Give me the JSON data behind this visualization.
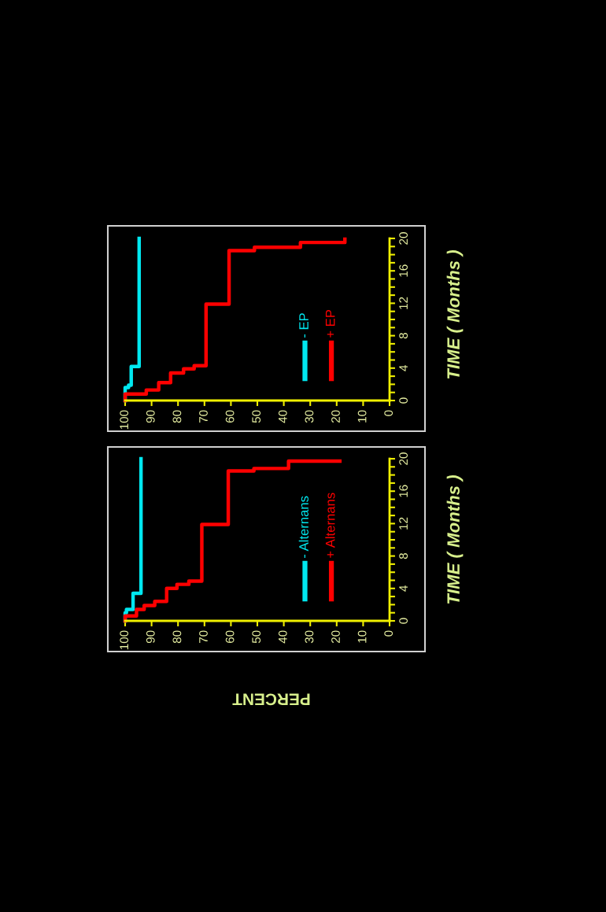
{
  "chart_data": [
    {
      "type": "step",
      "xlabel": "PERCENT",
      "ylabel": "TIME ( Months )",
      "xlim": [
        100,
        0
      ],
      "ylim": [
        0,
        20
      ],
      "xticks": [
        100,
        90,
        80,
        70,
        60,
        50,
        40,
        30,
        20,
        10,
        0
      ],
      "yticks": [
        0,
        {
          "value": 1,
          "label": null
        },
        {
          "value": 2,
          "label": null
        },
        {
          "value": 3,
          "label": null
        },
        4,
        {
          "value": 5,
          "label": null
        },
        {
          "value": 6,
          "label": null
        },
        {
          "value": 7,
          "label": null
        },
        8,
        {
          "value": 9,
          "label": null
        },
        {
          "value": 10,
          "label": null
        },
        {
          "value": 11,
          "label": null
        },
        12,
        {
          "value": 13,
          "label": null
        },
        {
          "value": 14,
          "label": null
        },
        {
          "value": 15,
          "label": null
        },
        16,
        {
          "value": 17,
          "label": null
        },
        {
          "value": 18,
          "label": null
        },
        {
          "value": 19,
          "label": null
        },
        20
      ],
      "legend": "right",
      "grid": false,
      "series": [
        {
          "name": "- Alternans",
          "color": "#00e8f0",
          "x": [
            100,
            99.5,
            97,
            94,
            94
          ],
          "values": [
            0,
            1.0,
            1.4,
            3.4,
            20
          ]
        },
        {
          "name": "+ Alternans",
          "color": "#ff0000",
          "x": [
            100,
            95.7,
            92.8,
            88.8,
            84.3,
            80.4,
            75.9,
            71,
            61,
            51.3,
            38.2,
            18.8
          ],
          "values": [
            0,
            0.6,
            1.4,
            1.9,
            2.4,
            4.0,
            4.5,
            4.9,
            11.9,
            18.5,
            18.8,
            19.7
          ]
        }
      ]
    },
    {
      "type": "step",
      "ylabel": "TIME ( Months )",
      "xlim": [
        100,
        0
      ],
      "ylim": [
        0,
        20
      ],
      "xticks": [
        100,
        90,
        80,
        70,
        60,
        50,
        40,
        30,
        20,
        10,
        0
      ],
      "yticks": [
        0,
        {
          "value": 1,
          "label": null
        },
        {
          "value": 2,
          "label": null
        },
        {
          "value": 3,
          "label": null
        },
        4,
        {
          "value": 5,
          "label": null
        },
        {
          "value": 6,
          "label": null
        },
        {
          "value": 7,
          "label": null
        },
        8,
        {
          "value": 9,
          "label": null
        },
        {
          "value": 10,
          "label": null
        },
        {
          "value": 11,
          "label": null
        },
        12,
        {
          "value": 13,
          "label": null
        },
        {
          "value": 14,
          "label": null
        },
        {
          "value": 15,
          "label": null
        },
        16,
        {
          "value": 17,
          "label": null
        },
        {
          "value": 18,
          "label": null
        },
        {
          "value": 19,
          "label": null
        },
        20
      ],
      "legend": "right",
      "grid": false,
      "series": [
        {
          "name": "- EP",
          "color": "#00e8f0",
          "x": [
            100,
            98.7,
            97.7,
            94.7,
            94.7
          ],
          "values": [
            0,
            1.6,
            1.9,
            4.2,
            20
          ]
        },
        {
          "name": "+ EP",
          "color": "#ff0000",
          "x": [
            100,
            92,
            87.3,
            82.8,
            77.9,
            73.9,
            69.4,
            60.7,
            51.1,
            33.7,
            16.9,
            16.9
          ],
          "values": [
            0,
            0.8,
            1.3,
            2.2,
            3.4,
            3.9,
            4.3,
            11.9,
            18.5,
            18.9,
            19.5,
            19.9
          ]
        }
      ]
    }
  ]
}
